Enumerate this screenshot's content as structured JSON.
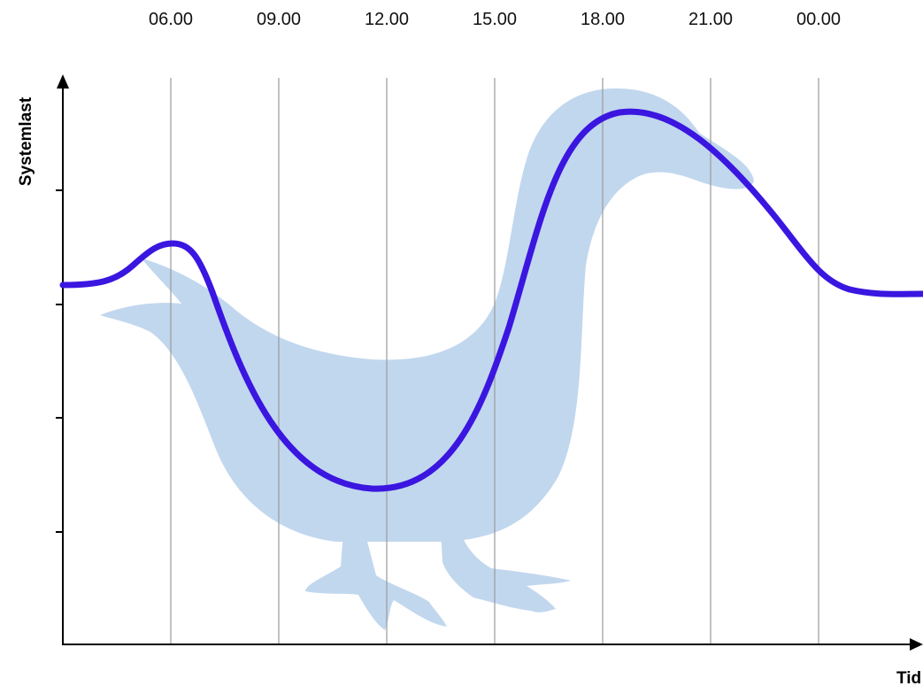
{
  "x_labels": [
    "06.00",
    "09.00",
    "12.00",
    "15.00",
    "18.00",
    "21.00",
    "00.00"
  ],
  "y_axis_label": "Systemlast",
  "x_axis_label": "Tid"
}
